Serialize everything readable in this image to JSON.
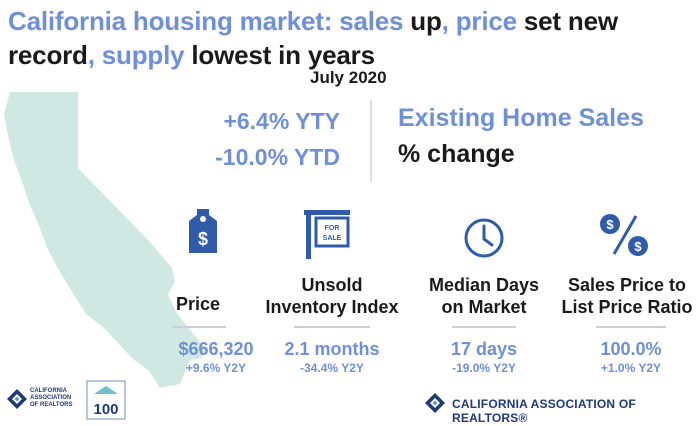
{
  "title": {
    "parts": [
      {
        "text": "California housing market: sales ",
        "color": "#6f8fd6"
      },
      {
        "text": "up",
        "color": "#1a1a1a"
      },
      {
        "text": ", price ",
        "color": "#6f8fd6"
      },
      {
        "text": "set new record",
        "color": "#1a1a1a"
      },
      {
        "text": ", supply ",
        "color": "#6f8fd6"
      },
      {
        "text": "lowest in years",
        "color": "#1a1a1a"
      }
    ]
  },
  "subtitle": "July 2020",
  "summary": {
    "yty": "+6.4% YTY",
    "ytd": "-10.0% YTD",
    "metric_name": "Existing Home Sales",
    "metric_unit": "% change"
  },
  "indicators": [
    {
      "label_lines": [
        "Price"
      ],
      "value": "$666,320",
      "change": "+9.6% Y2Y",
      "icon": "price-tag-icon"
    },
    {
      "label_lines": [
        "Unsold",
        "Inventory Index"
      ],
      "value": "2.1 months",
      "change": "-34.4% Y2Y",
      "icon": "for-sale-sign-icon"
    },
    {
      "label_lines": [
        "Median Days",
        "on Market"
      ],
      "value": "17 days",
      "change": "-19.0% Y2Y",
      "icon": "clock-icon"
    },
    {
      "label_lines": [
        "Sales Price to",
        "List Price Ratio"
      ],
      "value": "100.0%",
      "change": "+1.0% Y2Y",
      "icon": "percent-dollar-icon"
    }
  ],
  "footer": {
    "logo_text_lines": [
      "CALIFORNIA",
      "ASSOCIATION",
      "OF REALTORS"
    ],
    "badge_text": "100",
    "org_name": "CALIFORNIA ASSOCIATION OF REALTORS®"
  },
  "colors": {
    "accent": "#6f8fd6",
    "text": "#1a1a1a",
    "map": "#cfe8e2",
    "brand": "#1f3a7a"
  }
}
